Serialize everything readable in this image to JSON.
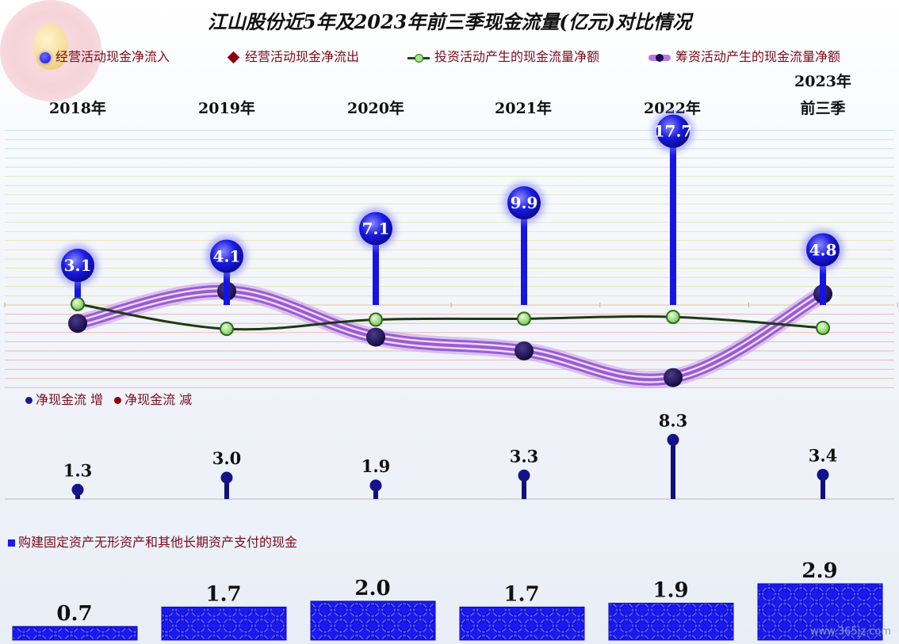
{
  "title": "江山股份近5年及2023年前三季现金流量(亿元)对比情况",
  "legend": {
    "operating_in": "经营活动现金净流入",
    "operating_out": "经营活动现金净流出",
    "investing": "投资活动产生的现金流量净额",
    "financing": "筹资活动产生的现金流量净额"
  },
  "years": [
    "2018年",
    "2019年",
    "2020年",
    "2021年",
    "2022年"
  ],
  "year_last_line1": "2023年",
  "year_last_line2": "前三季",
  "section2_label_inc": "净现金流 增",
  "section2_label_dec": "净现金流 减",
  "section3_label": "购建固定资产无形资产和其他长期资产支付的现金",
  "watermark": "www.365jz.com",
  "colors": {
    "operating": "#1010e0",
    "investing": "#1b4a10",
    "financing": "#b37be0",
    "net": "#10107a",
    "capex": "#1a1aee"
  },
  "chart_data": [
    {
      "type": "line",
      "categories": [
        "2018年",
        "2019年",
        "2020年",
        "2021年",
        "2022年",
        "2023年前三季"
      ],
      "series": [
        {
          "name": "经营活动现金净流入",
          "values": [
            3.1,
            4.1,
            7.1,
            9.9,
            17.7,
            4.8
          ],
          "labels": [
            "3.1",
            "4.1",
            "7.1",
            "9.9",
            "17.7",
            "4.8"
          ]
        },
        {
          "name": "投资活动产生的现金流量净额",
          "values": [
            0.1,
            -2.6,
            -1.6,
            -1.5,
            -1.3,
            -2.5
          ]
        },
        {
          "name": "筹资活动产生的现金流量净额",
          "values": [
            -2.0,
            1.5,
            -3.5,
            -5.0,
            -7.9,
            1.2
          ]
        }
      ]
    },
    {
      "type": "bar",
      "name": "净现金流",
      "categories": [
        "2018年",
        "2019年",
        "2020年",
        "2021年",
        "2022年",
        "2023年前三季"
      ],
      "values": [
        1.3,
        3.0,
        1.9,
        3.3,
        8.3,
        3.4
      ],
      "labels": [
        "1.3",
        "3.0",
        "1.9",
        "3.3",
        "8.3",
        "3.4"
      ]
    },
    {
      "type": "bar",
      "name": "购建固定资产无形资产和其他长期资产支付的现金",
      "categories": [
        "2018年",
        "2019年",
        "2020年",
        "2021年",
        "2022年",
        "2023年前三季"
      ],
      "values": [
        0.7,
        1.7,
        2.0,
        1.7,
        1.9,
        2.9
      ],
      "labels": [
        "0.7",
        "1.7",
        "2.0",
        "1.7",
        "1.9",
        "2.9"
      ]
    }
  ]
}
